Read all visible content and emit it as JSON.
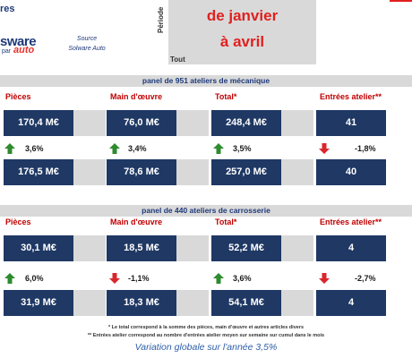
{
  "header": {
    "title_fragment": "res",
    "logo_word": "sware",
    "logo_sub": "par",
    "logo_auto": "auto",
    "source_label": "Source",
    "source_value": "Solware Auto",
    "periode_label": "Période",
    "period_line1": "de janvier",
    "period_line2": "à avril",
    "tout_label": "Tout"
  },
  "mecanique": {
    "panel_title": "panel de 951 ateliers de mécanique",
    "columns": [
      "Pièces",
      "Main d'œuvre",
      "Total*",
      "Entrées atelier**"
    ],
    "current": [
      "170,4 M€",
      "76,0 M€",
      "248,4 M€",
      "41"
    ],
    "changes": [
      {
        "value": "3,6%",
        "direction": "up"
      },
      {
        "value": "3,4%",
        "direction": "up"
      },
      {
        "value": "3,5%",
        "direction": "up"
      },
      {
        "value": "-1,8%",
        "direction": "down"
      }
    ],
    "previous": [
      "176,5 M€",
      "78,6 M€",
      "257,0 M€",
      "40"
    ]
  },
  "carrosserie": {
    "panel_title": "panel de 440 ateliers de carrosserie",
    "columns": [
      "Pièces",
      "Main d'œuvre",
      "Total*",
      "Entrées atelier**"
    ],
    "current": [
      "30,1 M€",
      "18,5 M€",
      "52,2 M€",
      "4"
    ],
    "changes": [
      {
        "value": "6,0%",
        "direction": "up"
      },
      {
        "value": "-1,1%",
        "direction": "down"
      },
      {
        "value": "3,6%",
        "direction": "up"
      },
      {
        "value": "-2,7%",
        "direction": "down"
      }
    ],
    "previous": [
      "31,9 M€",
      "18,3 M€",
      "54,1 M€",
      "4"
    ]
  },
  "footnotes": {
    "note1": "* Le total correspond à la somme des pièces, main d'œuvre et autres articles divers",
    "note2": "** Entrées atelier correspond au nombre d'entrées atelier moyen sur semaine sur cumul dans le mois"
  },
  "variation": "Variation globale sur l'année 3,5%",
  "colors": {
    "up": "#2e8b2e",
    "down": "#d9262c",
    "box": "#1f3864",
    "header": "#c00000"
  }
}
